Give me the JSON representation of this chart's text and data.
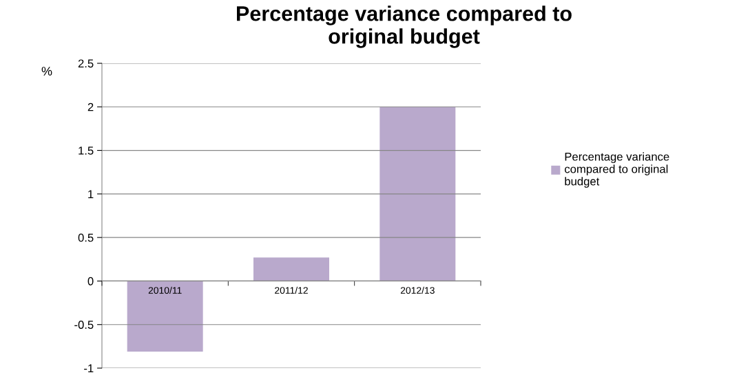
{
  "chart_data": {
    "type": "bar",
    "title": "Percentage variance compared to original budget",
    "ylabel": "%",
    "categories": [
      "2010/11",
      "2011/12",
      "2012/13"
    ],
    "series": [
      {
        "name": "Percentage variance compared to original budget",
        "color": "#b9a9cc",
        "values": [
          -0.81,
          0.27,
          2.0
        ]
      }
    ],
    "ylim": [
      -1,
      2.5
    ],
    "yticks": [
      -1,
      -0.5,
      0,
      0.5,
      1,
      1.5,
      2,
      2.5
    ],
    "grid": "y",
    "legend": "right"
  }
}
